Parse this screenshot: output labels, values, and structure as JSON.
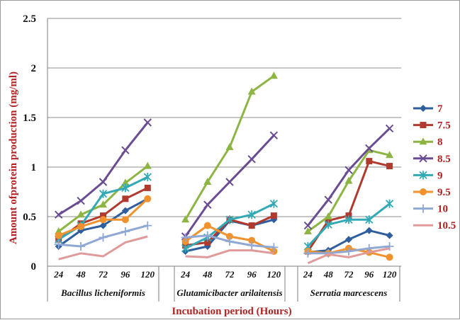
{
  "chart_data": {
    "type": "line",
    "ylabel": "Amount ofprotein production (mg/ml)",
    "xlabel": "Incubation period (Hours)",
    "ylim": [
      0,
      2.5
    ],
    "yticks": [
      "0",
      "0.5",
      "1",
      "1.5",
      "2",
      "2.5"
    ],
    "grid": "horizontal",
    "legend_position": "right",
    "groups": [
      "Bacillus licheniformis",
      "Glutamicibacter arilaitensis",
      "Serratia marcescens"
    ],
    "categories": [
      "24",
      "48",
      "72",
      "96",
      "120"
    ],
    "series": [
      {
        "name": "7",
        "color": "#2e5e9e",
        "marker": "diamond",
        "values": [
          [
            0.2,
            0.36,
            0.41,
            0.56,
            0.68
          ],
          [
            0.15,
            0.2,
            0.46,
            0.41,
            0.47
          ],
          [
            0.14,
            0.16,
            0.27,
            0.36,
            0.31
          ]
        ]
      },
      {
        "name": "7.5",
        "color": "#b03a2e",
        "marker": "square",
        "values": [
          [
            0.27,
            0.43,
            0.51,
            0.68,
            0.79
          ],
          [
            0.21,
            0.24,
            0.47,
            0.41,
            0.51
          ],
          [
            0.15,
            0.46,
            0.51,
            1.06,
            1.01
          ]
        ]
      },
      {
        "name": "8",
        "color": "#8db544",
        "marker": "triangle",
        "values": [
          [
            0.35,
            0.52,
            0.62,
            0.84,
            1.01
          ],
          [
            0.47,
            0.85,
            1.2,
            1.76,
            1.92
          ],
          [
            0.35,
            0.5,
            0.86,
            1.17,
            1.12
          ]
        ]
      },
      {
        "name": "8.5",
        "color": "#6a4c93",
        "marker": "x",
        "values": [
          [
            0.52,
            0.66,
            0.85,
            1.17,
            1.45
          ],
          [
            0.3,
            0.62,
            0.85,
            1.08,
            1.32
          ],
          [
            0.41,
            0.67,
            0.97,
            1.19,
            1.39
          ]
        ]
      },
      {
        "name": "9",
        "color": "#33a9b5",
        "marker": "star",
        "values": [
          [
            0.27,
            0.41,
            0.73,
            0.79,
            0.9
          ],
          [
            0.18,
            0.29,
            0.47,
            0.52,
            0.63
          ],
          [
            0.2,
            0.42,
            0.47,
            0.47,
            0.63
          ]
        ]
      },
      {
        "name": "9.5",
        "color": "#f0922d",
        "marker": "circle",
        "values": [
          [
            0.31,
            0.4,
            0.47,
            0.47,
            0.68
          ],
          [
            0.25,
            0.41,
            0.3,
            0.26,
            0.15
          ],
          [
            0.15,
            0.13,
            0.18,
            0.14,
            0.09
          ]
        ]
      },
      {
        "name": "10",
        "color": "#8fa8d4",
        "marker": "plus",
        "values": [
          [
            0.22,
            0.2,
            0.29,
            0.35,
            0.41
          ],
          [
            0.29,
            0.31,
            0.25,
            0.21,
            0.19
          ],
          [
            0.13,
            0.13,
            0.15,
            0.18,
            0.2
          ]
        ]
      },
      {
        "name": "10.5",
        "color": "#e19a9a",
        "marker": "none",
        "values": [
          [
            0.07,
            0.13,
            0.1,
            0.24,
            0.3
          ],
          [
            0.1,
            0.09,
            0.16,
            0.16,
            0.13
          ],
          [
            0.03,
            0.12,
            0.09,
            0.14,
            0.18
          ]
        ]
      }
    ]
  }
}
